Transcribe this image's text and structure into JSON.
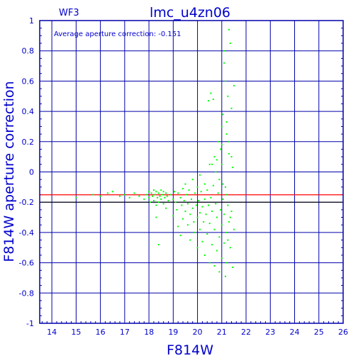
{
  "chart_data": {
    "type": "scatter",
    "title": "lmc_u4zn06",
    "chip_label": "WF3",
    "annotation": "Average aperture correction: -0.151",
    "xlabel": "F814W",
    "ylabel": "F814W aperture correction",
    "xlim": [
      13.5,
      26
    ],
    "ylim": [
      -1,
      1
    ],
    "xticks": [
      "14",
      "15",
      "16",
      "17",
      "18",
      "19",
      "20",
      "21",
      "22",
      "23",
      "24",
      "25",
      "26"
    ],
    "yticks": [
      "1",
      "0.8",
      "0.6",
      "0.4",
      "0.2",
      "0",
      "-0.2",
      "-0.4",
      "-0.6",
      "-0.8",
      "-1"
    ],
    "grid": true,
    "reference_lines": [
      {
        "y": -0.151,
        "color": "#ff0000"
      },
      {
        "y": -0.2,
        "color": "#000000"
      }
    ],
    "colors": {
      "axis": "#0000aa",
      "grid": "#0000aa",
      "text": "#0000cc",
      "points": "#00ff00",
      "mean_line": "#ff0000"
    },
    "series": [
      {
        "points": [
          [
            15.0,
            -0.17
          ],
          [
            15.7,
            -0.15
          ],
          [
            16.0,
            -0.16
          ],
          [
            16.3,
            -0.14
          ],
          [
            16.5,
            -0.13
          ],
          [
            16.8,
            -0.16
          ],
          [
            17.0,
            -0.15
          ],
          [
            17.2,
            -0.17
          ],
          [
            17.4,
            -0.14
          ],
          [
            17.6,
            -0.16
          ],
          [
            17.8,
            -0.18
          ],
          [
            17.9,
            -0.15
          ],
          [
            18.0,
            -0.13
          ],
          [
            18.0,
            -0.17
          ],
          [
            18.05,
            -0.2
          ],
          [
            18.1,
            -0.14
          ],
          [
            18.15,
            -0.16
          ],
          [
            18.2,
            -0.12
          ],
          [
            18.2,
            -0.19
          ],
          [
            18.25,
            -0.15
          ],
          [
            18.3,
            -0.22
          ],
          [
            18.3,
            -0.13
          ],
          [
            18.35,
            -0.17
          ],
          [
            18.4,
            -0.14
          ],
          [
            18.4,
            -0.2
          ],
          [
            18.45,
            -0.16
          ],
          [
            18.5,
            -0.12
          ],
          [
            18.5,
            -0.18
          ],
          [
            18.55,
            -0.15
          ],
          [
            18.6,
            -0.21
          ],
          [
            18.6,
            -0.13
          ],
          [
            18.65,
            -0.17
          ],
          [
            18.7,
            -0.14
          ],
          [
            18.7,
            -0.24
          ],
          [
            18.75,
            -0.16
          ],
          [
            18.8,
            -0.19
          ],
          [
            18.4,
            -0.48
          ],
          [
            18.3,
            -0.3
          ],
          [
            18.9,
            -0.15
          ],
          [
            19.0,
            -0.18
          ],
          [
            19.0,
            -0.29
          ],
          [
            19.05,
            -0.13
          ],
          [
            19.1,
            -0.2
          ],
          [
            19.15,
            -0.25
          ],
          [
            19.2,
            -0.14
          ],
          [
            19.2,
            -0.36
          ],
          [
            19.3,
            -0.17
          ],
          [
            19.3,
            -0.42
          ],
          [
            19.35,
            -0.22
          ],
          [
            19.4,
            -0.11
          ],
          [
            19.4,
            -0.31
          ],
          [
            19.45,
            -0.19
          ],
          [
            19.5,
            -0.26
          ],
          [
            19.5,
            -0.08
          ],
          [
            19.55,
            -0.15
          ],
          [
            19.6,
            -0.35
          ],
          [
            19.6,
            -0.21
          ],
          [
            19.65,
            -0.12
          ],
          [
            19.7,
            -0.28
          ],
          [
            19.7,
            -0.45
          ],
          [
            19.75,
            -0.18
          ],
          [
            19.8,
            -0.05
          ],
          [
            19.8,
            -0.24
          ],
          [
            19.85,
            -0.33
          ],
          [
            19.9,
            -0.14
          ],
          [
            19.9,
            -0.4
          ],
          [
            19.95,
            -0.22
          ],
          [
            20.0,
            -0.1
          ],
          [
            20.0,
            -0.3
          ],
          [
            20.0,
            -0.5
          ],
          [
            20.05,
            -0.19
          ],
          [
            20.1,
            -0.02
          ],
          [
            20.1,
            -0.27
          ],
          [
            20.1,
            -0.38
          ],
          [
            20.15,
            -0.13
          ],
          [
            20.2,
            -0.23
          ],
          [
            20.2,
            -0.46
          ],
          [
            20.25,
            -0.33
          ],
          [
            20.3,
            -0.08
          ],
          [
            20.3,
            -0.18
          ],
          [
            20.3,
            -0.55
          ],
          [
            20.35,
            -0.28
          ],
          [
            20.4,
            -0.41
          ],
          [
            20.4,
            -0.12
          ],
          [
            20.45,
            -0.22
          ],
          [
            20.5,
            0.05
          ],
          [
            20.5,
            -0.34
          ],
          [
            20.5,
            -0.6
          ],
          [
            20.55,
            -0.17
          ],
          [
            20.6,
            -0.26
          ],
          [
            20.6,
            -0.48
          ],
          [
            20.65,
            -0.09
          ],
          [
            20.7,
            -0.38
          ],
          [
            20.7,
            0.1
          ],
          [
            20.7,
            -0.62
          ],
          [
            20.75,
            -0.21
          ],
          [
            20.8,
            -0.3
          ],
          [
            20.8,
            -0.52
          ],
          [
            20.85,
            0.2
          ],
          [
            20.85,
            -0.14
          ],
          [
            20.9,
            -0.43
          ],
          [
            20.9,
            -0.66
          ],
          [
            20.95,
            -0.25
          ],
          [
            21.0,
            0.05
          ],
          [
            21.0,
            -0.35
          ],
          [
            21.0,
            -0.57
          ],
          [
            21.05,
            -0.18
          ],
          [
            21.05,
            0.38
          ],
          [
            21.1,
            -0.28
          ],
          [
            21.1,
            -0.47
          ],
          [
            21.1,
            0.72
          ],
          [
            21.15,
            -0.1
          ],
          [
            21.15,
            -0.69
          ],
          [
            21.2,
            0.25
          ],
          [
            21.2,
            -0.4
          ],
          [
            21.2,
            -0.6
          ],
          [
            21.25,
            0.5
          ],
          [
            21.25,
            -0.22
          ],
          [
            21.3,
            0.94
          ],
          [
            21.3,
            -0.33
          ],
          [
            21.3,
            0.12
          ],
          [
            21.35,
            -0.5
          ],
          [
            21.35,
            0.85
          ],
          [
            21.4,
            -0.26
          ],
          [
            21.4,
            0.42
          ],
          [
            21.45,
            -0.63
          ],
          [
            21.45,
            0.03
          ],
          [
            21.5,
            0.57
          ],
          [
            21.5,
            -0.38
          ],
          [
            21.0,
            0.3
          ],
          [
            21.05,
            -0.08
          ],
          [
            20.95,
            0.15
          ],
          [
            21.15,
            0.6
          ],
          [
            21.2,
            -0.15
          ],
          [
            20.75,
            0.0
          ],
          [
            20.65,
            0.48
          ],
          [
            20.55,
            0.52
          ],
          [
            20.45,
            0.47
          ],
          [
            21.1,
            0.8
          ],
          [
            20.9,
            -0.05
          ],
          [
            21.3,
            0.2
          ],
          [
            21.4,
            0.1
          ],
          [
            21.25,
            -0.45
          ],
          [
            21.35,
            -0.3
          ],
          [
            20.6,
            0.05
          ],
          [
            20.8,
            0.08
          ],
          [
            21.0,
            0.18
          ],
          [
            21.2,
            0.33
          ]
        ]
      }
    ]
  }
}
